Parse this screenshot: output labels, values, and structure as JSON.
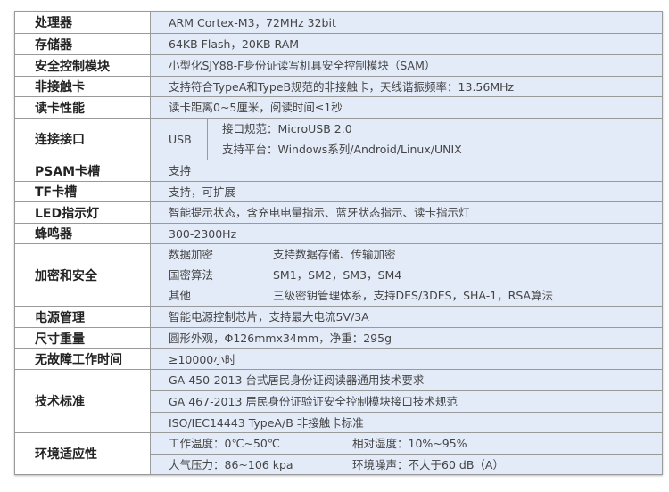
{
  "rows": [
    {
      "label": "处理器",
      "value": "ARM Cortex-M3，72MHz 32bit"
    },
    {
      "label": "存储器",
      "value": "64KB Flash，20KB RAM"
    },
    {
      "label": "安全控制模块",
      "value": "小型化SJY88-F身份证读写机具安全控制模块（SAM）"
    },
    {
      "label": "非接触卡",
      "value": "支持符合TypeA和TypeB规范的非接触卡，天线谐振频率：13.56MHz"
    },
    {
      "label": "读卡性能",
      "value": "读卡距离0~5厘米，阅读时间≤1秒"
    }
  ],
  "connection": {
    "label": "连接接口",
    "type": "USB",
    "lines": [
      "接口规范：MicroUSB 2.0",
      "支持平台：Windows系列/Android/Linux/UNIX"
    ]
  },
  "rows2": [
    {
      "label": "PSAM卡槽",
      "value": "支持"
    },
    {
      "label": "TF卡槽",
      "value": "支持，可扩展"
    },
    {
      "label": "LED指示灯",
      "value": "智能提示状态，含充电电量指示、蓝牙状态指示、读卡指示灯"
    },
    {
      "label": "蜂鸣器",
      "value": "300-2300Hz"
    }
  ],
  "security": {
    "label": "加密和安全",
    "items": [
      {
        "k": "数据加密",
        "v": "支持数据存储、传输加密"
      },
      {
        "k": "国密算法",
        "v": "SM1，SM2，SM3，SM4"
      },
      {
        "k": "其他",
        "v": "三级密钥管理体系，支持DES/3DES，SHA-1，RSA算法"
      }
    ]
  },
  "rows3": [
    {
      "label": "电源管理",
      "value": "智能电源控制芯片，支持最大电流5V/3A"
    },
    {
      "label": "尺寸重量",
      "value": "圆形外观，Φ126mmx34mm，净重：295g"
    },
    {
      "label": "无故障工作时间",
      "value": "≥10000小时"
    }
  ],
  "standards": {
    "label": "技术标准",
    "items": [
      "GA 450-2013 台式居民身份证阅读器通用技术要求",
      "GA 467-2013 居民身份证验证安全控制模块接口技术规范",
      "ISO/IEC14443 TypeA/B 非接触卡标准"
    ]
  },
  "environment": {
    "label": "环境适应性",
    "items": [
      {
        "a": "工作温度：0℃~50℃",
        "b": "相对湿度：10%~95%"
      },
      {
        "a": "大气压力：86~106 kpa",
        "b": "环境噪声：不大于60 dB（A）"
      }
    ]
  }
}
